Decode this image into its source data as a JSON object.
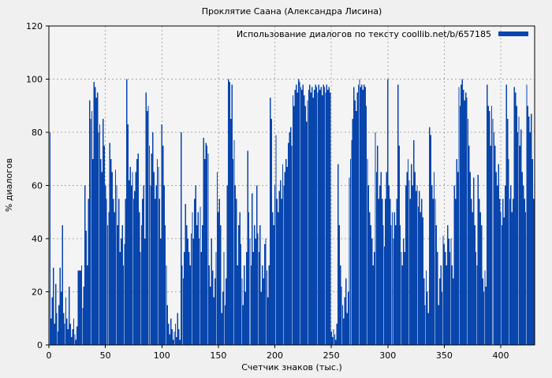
{
  "colors": {
    "page_background": "#f0f0f0",
    "plot_background": "#f4f4f4",
    "bar": "#0845ad",
    "grid": "#a8a8a8",
    "border": "#000000",
    "text": "#000000"
  },
  "chart_data": {
    "type": "bar",
    "title": "Проклятие Саана (Александра Лисина)",
    "xlabel": "Счетчик знаков (тыс.)",
    "ylabel": "% диалогов",
    "xlim": [
      0,
      430
    ],
    "ylim": [
      0,
      120
    ],
    "xticks": [
      0,
      50,
      100,
      150,
      200,
      250,
      300,
      350,
      400
    ],
    "yticks": [
      0,
      20,
      40,
      60,
      80,
      100,
      120
    ],
    "grid": true,
    "grid_style": "dashed",
    "legend_position": "top-right",
    "series": [
      {
        "name": "Использование диалогов по тексту coollib.net/b/657185",
        "color": "#0845ad",
        "x_start": 0,
        "x_step": 1,
        "values": [
          87,
          80,
          10,
          18,
          29,
          8,
          23,
          12,
          5,
          15,
          29,
          20,
          45,
          12,
          8,
          18,
          10,
          6,
          22,
          8,
          3,
          6,
          10,
          4,
          2,
          7,
          28,
          28,
          28,
          30,
          14,
          22,
          60,
          43,
          30,
          55,
          92,
          85,
          88,
          70,
          99,
          97,
          93,
          95,
          80,
          83,
          70,
          65,
          85,
          75,
          60,
          55,
          45,
          50,
          76,
          70,
          65,
          55,
          50,
          66,
          60,
          45,
          55,
          35,
          40,
          45,
          30,
          38,
          55,
          100,
          83,
          62,
          67,
          60,
          65,
          55,
          58,
          65,
          70,
          72,
          50,
          35,
          45,
          55,
          60,
          40,
          95,
          88,
          90,
          75,
          60,
          72,
          80,
          65,
          55,
          60,
          70,
          67,
          55,
          40,
          83,
          75,
          60,
          45,
          30,
          15,
          8,
          4,
          10,
          6,
          2,
          5,
          8,
          3,
          12,
          6,
          2,
          80,
          30,
          25,
          35,
          53,
          45,
          40,
          35,
          30,
          42,
          50,
          40,
          55,
          60,
          45,
          50,
          40,
          52,
          35,
          45,
          78,
          70,
          76,
          75,
          72,
          30,
          22,
          40,
          28,
          18,
          25,
          35,
          65,
          50,
          55,
          45,
          12,
          20,
          35,
          15,
          25,
          60,
          100,
          99,
          85,
          98,
          70,
          77,
          60,
          55,
          30,
          45,
          50,
          38,
          25,
          15,
          30,
          20,
          35,
          73,
          50,
          40,
          30,
          57,
          35,
          45,
          40,
          60,
          42,
          35,
          45,
          20,
          30,
          25,
          38,
          40,
          28,
          18,
          30,
          93,
          85,
          50,
          45,
          60,
          79,
          55,
          50,
          58,
          62,
          55,
          68,
          60,
          65,
          70,
          67,
          76,
          80,
          82,
          75,
          94,
          90,
          96,
          98,
          95,
          100,
          99,
          97,
          96,
          98,
          94,
          90,
          84,
          92,
          96,
          98,
          95,
          97,
          93,
          96,
          98,
          97,
          95,
          98,
          96,
          97,
          94,
          98,
          97,
          95,
          98,
          96,
          97,
          95,
          5,
          3,
          6,
          4,
          2,
          8,
          68,
          45,
          30,
          22,
          15,
          10,
          18,
          25,
          12,
          20,
          63,
          70,
          77,
          85,
          97,
          92,
          88,
          95,
          98,
          100,
          97,
          98,
          96,
          98,
          97,
          90,
          70,
          60,
          50,
          45,
          40,
          30,
          35,
          80,
          65,
          75,
          55,
          60,
          65,
          55,
          45,
          37,
          55,
          65,
          100,
          60,
          55,
          45,
          50,
          40,
          50,
          45,
          55,
          98,
          75,
          45,
          35,
          30,
          40,
          35,
          60,
          65,
          70,
          62,
          55,
          68,
          60,
          77,
          65,
          58,
          60,
          52,
          58,
          50,
          55,
          48,
          25,
          15,
          28,
          20,
          12,
          82,
          79,
          60,
          55,
          65,
          55,
          45,
          35,
          15,
          25,
          30,
          20,
          41,
          38,
          35,
          30,
          45,
          40,
          35,
          40,
          30,
          25,
          60,
          55,
          70,
          65,
          97,
          90,
          98,
          100,
          96,
          92,
          95,
          93,
          85,
          75,
          65,
          55,
          50,
          63,
          45,
          35,
          30,
          64,
          55,
          50,
          45,
          25,
          20,
          28,
          22,
          98,
          90,
          88,
          75,
          90,
          85,
          80,
          75,
          65,
          60,
          68,
          55,
          50,
          45,
          55,
          48,
          60,
          98,
          85,
          70,
          55,
          60,
          50,
          55,
          97,
          95,
          90,
          80,
          86,
          75,
          81,
          65,
          60,
          55,
          50,
          98,
          90,
          86,
          80,
          87,
          70,
          55,
          88
        ]
      }
    ]
  }
}
